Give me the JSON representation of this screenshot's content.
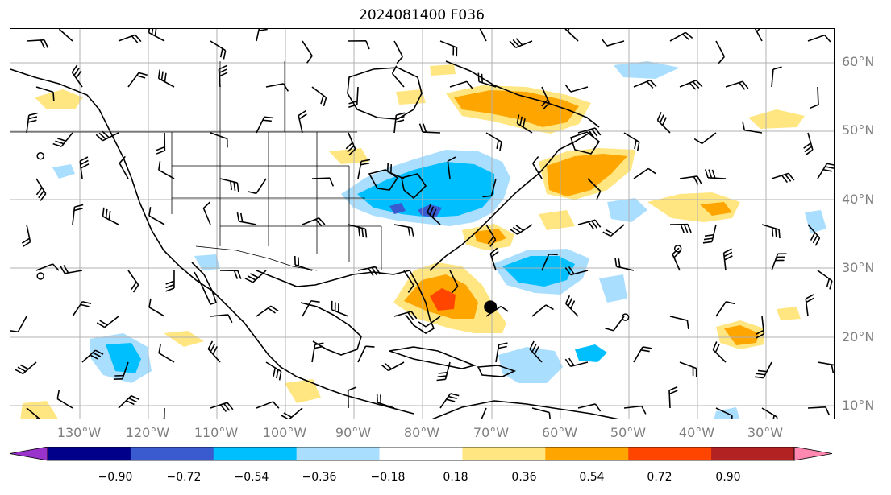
{
  "title": "2024081400 F036",
  "lat_labels": [
    "60°N",
    "50°N",
    "40°N",
    "30°N",
    "20°N",
    "10°N"
  ],
  "lon_labels": [
    "130°W",
    "120°W",
    "110°W",
    "100°W",
    "90°W",
    "80°W",
    "70°W",
    "60°W",
    "50°W",
    "40°W",
    "30°W"
  ],
  "colorbar": {
    "ticks": [
      "−0.90",
      "−0.72",
      "−0.54",
      "−0.36",
      "−0.18",
      "0.18",
      "0.36",
      "0.54",
      "0.72",
      "0.90"
    ],
    "colors": [
      "#9933cc",
      "#00008b",
      "#3a5bd0",
      "#00bfff",
      "#aadeff",
      "#ffffff",
      "#ffe680",
      "#ffa500",
      "#ff4500",
      "#b22222",
      "#ff88b0"
    ]
  },
  "map": {
    "extent": {
      "lon_min": -135,
      "lon_max": -25,
      "lat_min": 8,
      "lat_max": 65
    },
    "markers": [
      {
        "type": "filled-dot",
        "lon": -71,
        "lat": 24.5
      },
      {
        "type": "open-circle",
        "lon": -131,
        "lat": 46.5
      },
      {
        "type": "open-circle",
        "lon": -131,
        "lat": 29
      },
      {
        "type": "open-circle",
        "lon": -53,
        "lat": 23
      },
      {
        "type": "open-circle",
        "lon": -46,
        "lat": 33
      }
    ]
  }
}
